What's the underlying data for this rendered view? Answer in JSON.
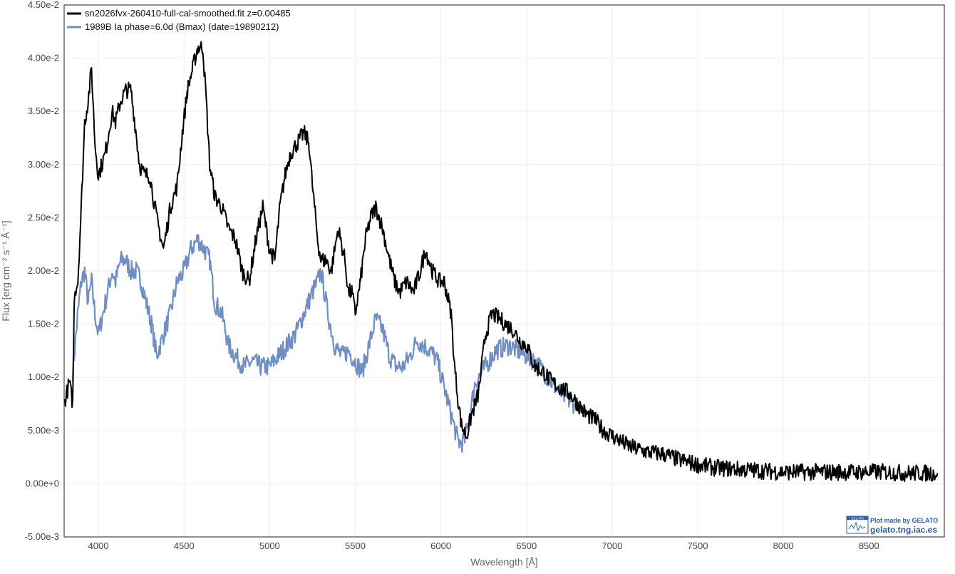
{
  "chart_data": {
    "type": "line",
    "xlabel": "Wavelength [Å]",
    "ylabel": "Flux [erg cm⁻² s⁻¹ Å⁻¹]",
    "xlim": [
      3800,
      8940
    ],
    "ylim": [
      -0.005,
      0.045
    ],
    "x_ticks": [
      4000,
      4500,
      5000,
      5500,
      6000,
      6500,
      7000,
      7500,
      8000,
      8500
    ],
    "y_ticks": [
      -0.005,
      0,
      0.005,
      0.01,
      0.015,
      0.02,
      0.025,
      0.03,
      0.035,
      0.04,
      0.045
    ],
    "y_tick_labels": [
      "-5.00e-3",
      "0.00e+0",
      "5.00e-3",
      "1.00e-2",
      "1.50e-2",
      "2.00e-2",
      "2.50e-2",
      "3.00e-2",
      "3.50e-2",
      "4.00e-2",
      "4.50e-2"
    ],
    "grid": true,
    "legend_position": "top-left",
    "series": [
      {
        "name": "sn2026fvx-260410-full-cal-smoothed.fit  z=0.00485",
        "color": "#000000",
        "x": [
          3800,
          3830,
          3850,
          3860,
          3880,
          3900,
          3920,
          3940,
          3960,
          3980,
          4000,
          4040,
          4080,
          4100,
          4130,
          4160,
          4190,
          4220,
          4240,
          4270,
          4300,
          4340,
          4380,
          4400,
          4420,
          4460,
          4490,
          4520,
          4550,
          4580,
          4610,
          4630,
          4650,
          4680,
          4720,
          4760,
          4800,
          4840,
          4880,
          4920,
          4960,
          5000,
          5030,
          5060,
          5090,
          5120,
          5160,
          5200,
          5230,
          5250,
          5280,
          5300,
          5330,
          5360,
          5400,
          5440,
          5460,
          5480,
          5500,
          5530,
          5560,
          5590,
          5620,
          5660,
          5700,
          5730,
          5760,
          5800,
          5840,
          5880,
          5910,
          5950,
          5990,
          6020,
          6060,
          6080,
          6100,
          6120,
          6150,
          6180,
          6220,
          6260,
          6300,
          6340,
          6380,
          6420,
          6460,
          6500,
          6550,
          6600,
          6650,
          6700,
          6750,
          6800,
          6850,
          6900,
          6950,
          7000,
          7100,
          7200,
          7300,
          7400,
          7500,
          7600,
          7700,
          7800,
          7900,
          8000,
          8100,
          8200,
          8300,
          8400,
          8500,
          8600,
          8700,
          8800,
          8900
        ],
        "y": [
          0.0075,
          0.0095,
          0.0075,
          0.018,
          0.019,
          0.026,
          0.034,
          0.036,
          0.039,
          0.032,
          0.029,
          0.031,
          0.035,
          0.034,
          0.036,
          0.037,
          0.037,
          0.033,
          0.03,
          0.029,
          0.029,
          0.025,
          0.022,
          0.024,
          0.026,
          0.028,
          0.033,
          0.037,
          0.039,
          0.041,
          0.041,
          0.036,
          0.03,
          0.027,
          0.026,
          0.024,
          0.023,
          0.02,
          0.019,
          0.023,
          0.026,
          0.022,
          0.021,
          0.026,
          0.029,
          0.031,
          0.032,
          0.033,
          0.032,
          0.028,
          0.023,
          0.021,
          0.021,
          0.02,
          0.024,
          0.021,
          0.018,
          0.018,
          0.016,
          0.019,
          0.023,
          0.025,
          0.026,
          0.024,
          0.021,
          0.019,
          0.018,
          0.019,
          0.018,
          0.02,
          0.022,
          0.02,
          0.019,
          0.019,
          0.016,
          0.011,
          0.008,
          0.0055,
          0.0045,
          0.0065,
          0.0085,
          0.014,
          0.016,
          0.0155,
          0.015,
          0.0145,
          0.0135,
          0.013,
          0.011,
          0.0105,
          0.0095,
          0.009,
          0.0085,
          0.0075,
          0.0065,
          0.006,
          0.005,
          0.0045,
          0.0035,
          0.003,
          0.0028,
          0.0022,
          0.0018,
          0.0015,
          0.0014,
          0.0013,
          0.0012,
          0.0011,
          0.0011,
          0.0011,
          0.0011,
          0.0011,
          0.0011,
          0.0011,
          0.001,
          0.001,
          0.001
        ]
      },
      {
        "name": "1989B  Ia  phase=6.0d (Bmax)  (date=19890212)",
        "color": "#6f8ec4",
        "x": [
          3850,
          3880,
          3900,
          3920,
          3940,
          3960,
          3980,
          4000,
          4040,
          4080,
          4100,
          4130,
          4160,
          4190,
          4220,
          4250,
          4280,
          4310,
          4340,
          4380,
          4420,
          4460,
          4500,
          4540,
          4580,
          4620,
          4650,
          4680,
          4720,
          4760,
          4800,
          4850,
          4900,
          4950,
          5000,
          5050,
          5100,
          5150,
          5200,
          5250,
          5280,
          5300,
          5340,
          5380,
          5420,
          5460,
          5500,
          5540,
          5580,
          5620,
          5660,
          5700,
          5740,
          5780,
          5820,
          5860,
          5900,
          5940,
          5980,
          6020,
          6060,
          6100,
          6120,
          6140,
          6170,
          6200,
          6240,
          6280,
          6320,
          6360,
          6400,
          6450,
          6500,
          6550,
          6600,
          6650,
          6700,
          6750,
          6780
        ],
        "y": [
          0.0105,
          0.016,
          0.019,
          0.02,
          0.017,
          0.019,
          0.016,
          0.014,
          0.017,
          0.02,
          0.019,
          0.021,
          0.021,
          0.02,
          0.02,
          0.019,
          0.017,
          0.015,
          0.012,
          0.014,
          0.016,
          0.019,
          0.02,
          0.022,
          0.023,
          0.022,
          0.021,
          0.017,
          0.016,
          0.013,
          0.012,
          0.011,
          0.0115,
          0.011,
          0.011,
          0.012,
          0.013,
          0.014,
          0.016,
          0.018,
          0.019,
          0.02,
          0.016,
          0.013,
          0.012,
          0.0125,
          0.0115,
          0.0105,
          0.013,
          0.0155,
          0.0145,
          0.012,
          0.011,
          0.011,
          0.012,
          0.0135,
          0.013,
          0.0125,
          0.0115,
          0.009,
          0.0065,
          0.004,
          0.0038,
          0.0042,
          0.0065,
          0.0095,
          0.0105,
          0.0115,
          0.0125,
          0.0128,
          0.013,
          0.0125,
          0.012,
          0.0115,
          0.0105,
          0.0095,
          0.0085,
          0.0078,
          0.0075
        ]
      }
    ]
  },
  "legend": {
    "items": [
      {
        "label": "sn2026fvx-260410-full-cal-smoothed.fit  z=0.00485",
        "color": "#000000"
      },
      {
        "label": "1989B  Ia  phase=6.0d (Bmax)  (date=19890212)",
        "color": "#6f8ec4"
      }
    ]
  },
  "credit": {
    "line1": "Plot made by GELATO",
    "line2": "gelato.tng.iac.es",
    "logo_text": "GELATO",
    "color": "#2f5fa7"
  }
}
